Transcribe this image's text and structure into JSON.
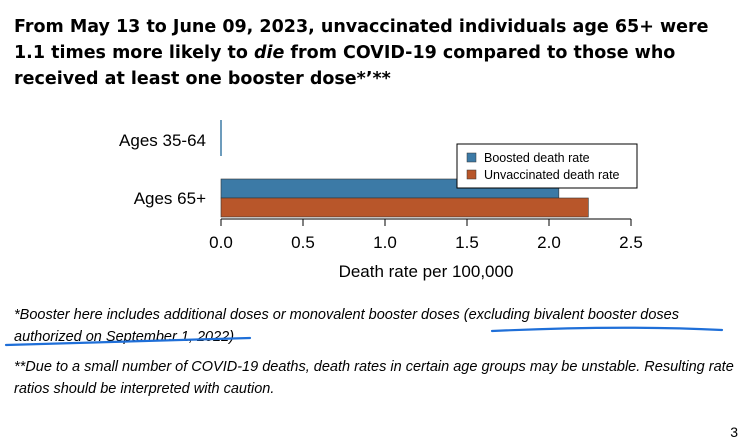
{
  "title": {
    "part1": "From May 13 to June 09, 2023, unvaccinated individuals age 65+ were 1.1 times more likely to ",
    "emphasis": "die",
    "part2": " from COVID-19 compared to those who received at least one booster dose*",
    "marks": "’**"
  },
  "chart_data": {
    "type": "bar",
    "orientation": "horizontal",
    "categories": [
      "Ages 35-64",
      "Ages 65+"
    ],
    "series": [
      {
        "name": "Boosted death rate",
        "color": "#3C7AA6",
        "values": [
          0.0,
          2.06
        ]
      },
      {
        "name": "Unvaccinated death rate",
        "color": "#B8562A",
        "values": [
          0.0,
          2.24
        ]
      }
    ],
    "xlabel": "Death rate per 100,000",
    "xlim": [
      0,
      2.5
    ],
    "xticks": [
      "0.0",
      "0.5",
      "1.0",
      "1.5",
      "2.0",
      "2.5"
    ],
    "legend_position": "top-right",
    "grid": false
  },
  "footnotes": {
    "note1": "*Booster here includes additional doses or monovalent booster doses (excluding bivalent booster doses authorized on September 1, 2022)",
    "note2": "**Due to a small number of COVID-19 deaths, death rates in certain age groups may be unstable. Resulting rate ratios should be interpreted with caution."
  },
  "page_number": "3",
  "colors": {
    "underline": "#1F6FD8"
  }
}
